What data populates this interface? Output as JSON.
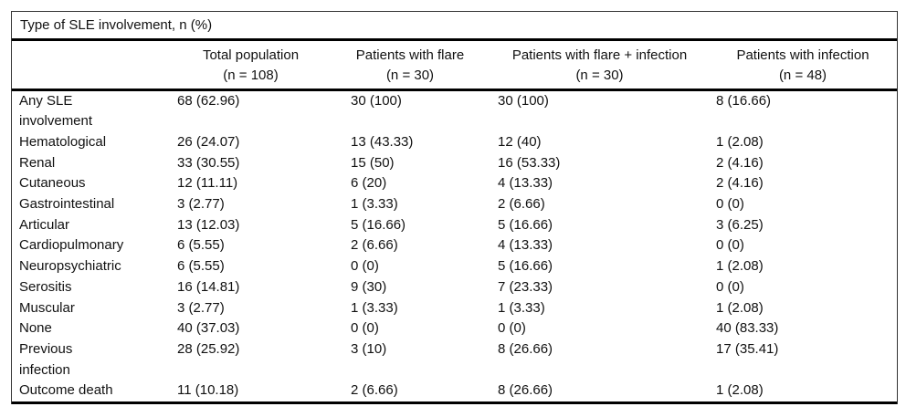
{
  "table": {
    "title": "Type of SLE involvement, n (%)",
    "columns": [
      "",
      "Total population\n(n = 108)",
      "Patients with flare\n(n = 30)",
      "Patients with flare + infection\n(n = 30)",
      "Patients with infection\n(n = 48)"
    ],
    "rows": [
      {
        "label": "Any SLE\ninvolvement",
        "values": [
          "68 (62.96)",
          "30 (100)",
          "30 (100)",
          "8 (16.66)"
        ]
      },
      {
        "label": "Hematological",
        "values": [
          "26 (24.07)",
          "13 (43.33)",
          "12 (40)",
          "1 (2.08)"
        ]
      },
      {
        "label": "Renal",
        "values": [
          "33 (30.55)",
          "15 (50)",
          "16 (53.33)",
          "2 (4.16)"
        ]
      },
      {
        "label": "Cutaneous",
        "values": [
          "12 (11.11)",
          "6 (20)",
          "4 (13.33)",
          "2 (4.16)"
        ]
      },
      {
        "label": "Gastrointestinal",
        "values": [
          "3 (2.77)",
          "1 (3.33)",
          "2 (6.66)",
          "0 (0)"
        ]
      },
      {
        "label": "Articular",
        "values": [
          "13 (12.03)",
          "5 (16.66)",
          "5 (16.66)",
          "3 (6.25)"
        ]
      },
      {
        "label": "Cardiopulmonary",
        "values": [
          "6 (5.55)",
          "2 (6.66)",
          "4 (13.33)",
          "0 (0)"
        ]
      },
      {
        "label": "Neuropsychiatric",
        "values": [
          "6 (5.55)",
          "0 (0)",
          "5 (16.66)",
          "1 (2.08)"
        ]
      },
      {
        "label": "Serositis",
        "values": [
          "16 (14.81)",
          "9 (30)",
          "7 (23.33)",
          "0 (0)"
        ]
      },
      {
        "label": "Muscular",
        "values": [
          "3 (2.77)",
          "1 (3.33)",
          "1 (3.33)",
          "1 (2.08)"
        ]
      },
      {
        "label": "None",
        "values": [
          "40 (37.03)",
          "0 (0)",
          "0 (0)",
          "40 (83.33)"
        ]
      },
      {
        "label": "Previous\ninfection",
        "values": [
          "28 (25.92)",
          "3 (10)",
          "8 (26.66)",
          "17 (35.41)"
        ]
      },
      {
        "label": "Outcome death",
        "values": [
          "11 (10.18)",
          "2 (6.66)",
          "8 (26.66)",
          "1 (2.08)"
        ]
      }
    ]
  },
  "colors": {
    "text": "#111111",
    "rule": "#000000",
    "outer_border": "#333333",
    "background": "#ffffff"
  }
}
